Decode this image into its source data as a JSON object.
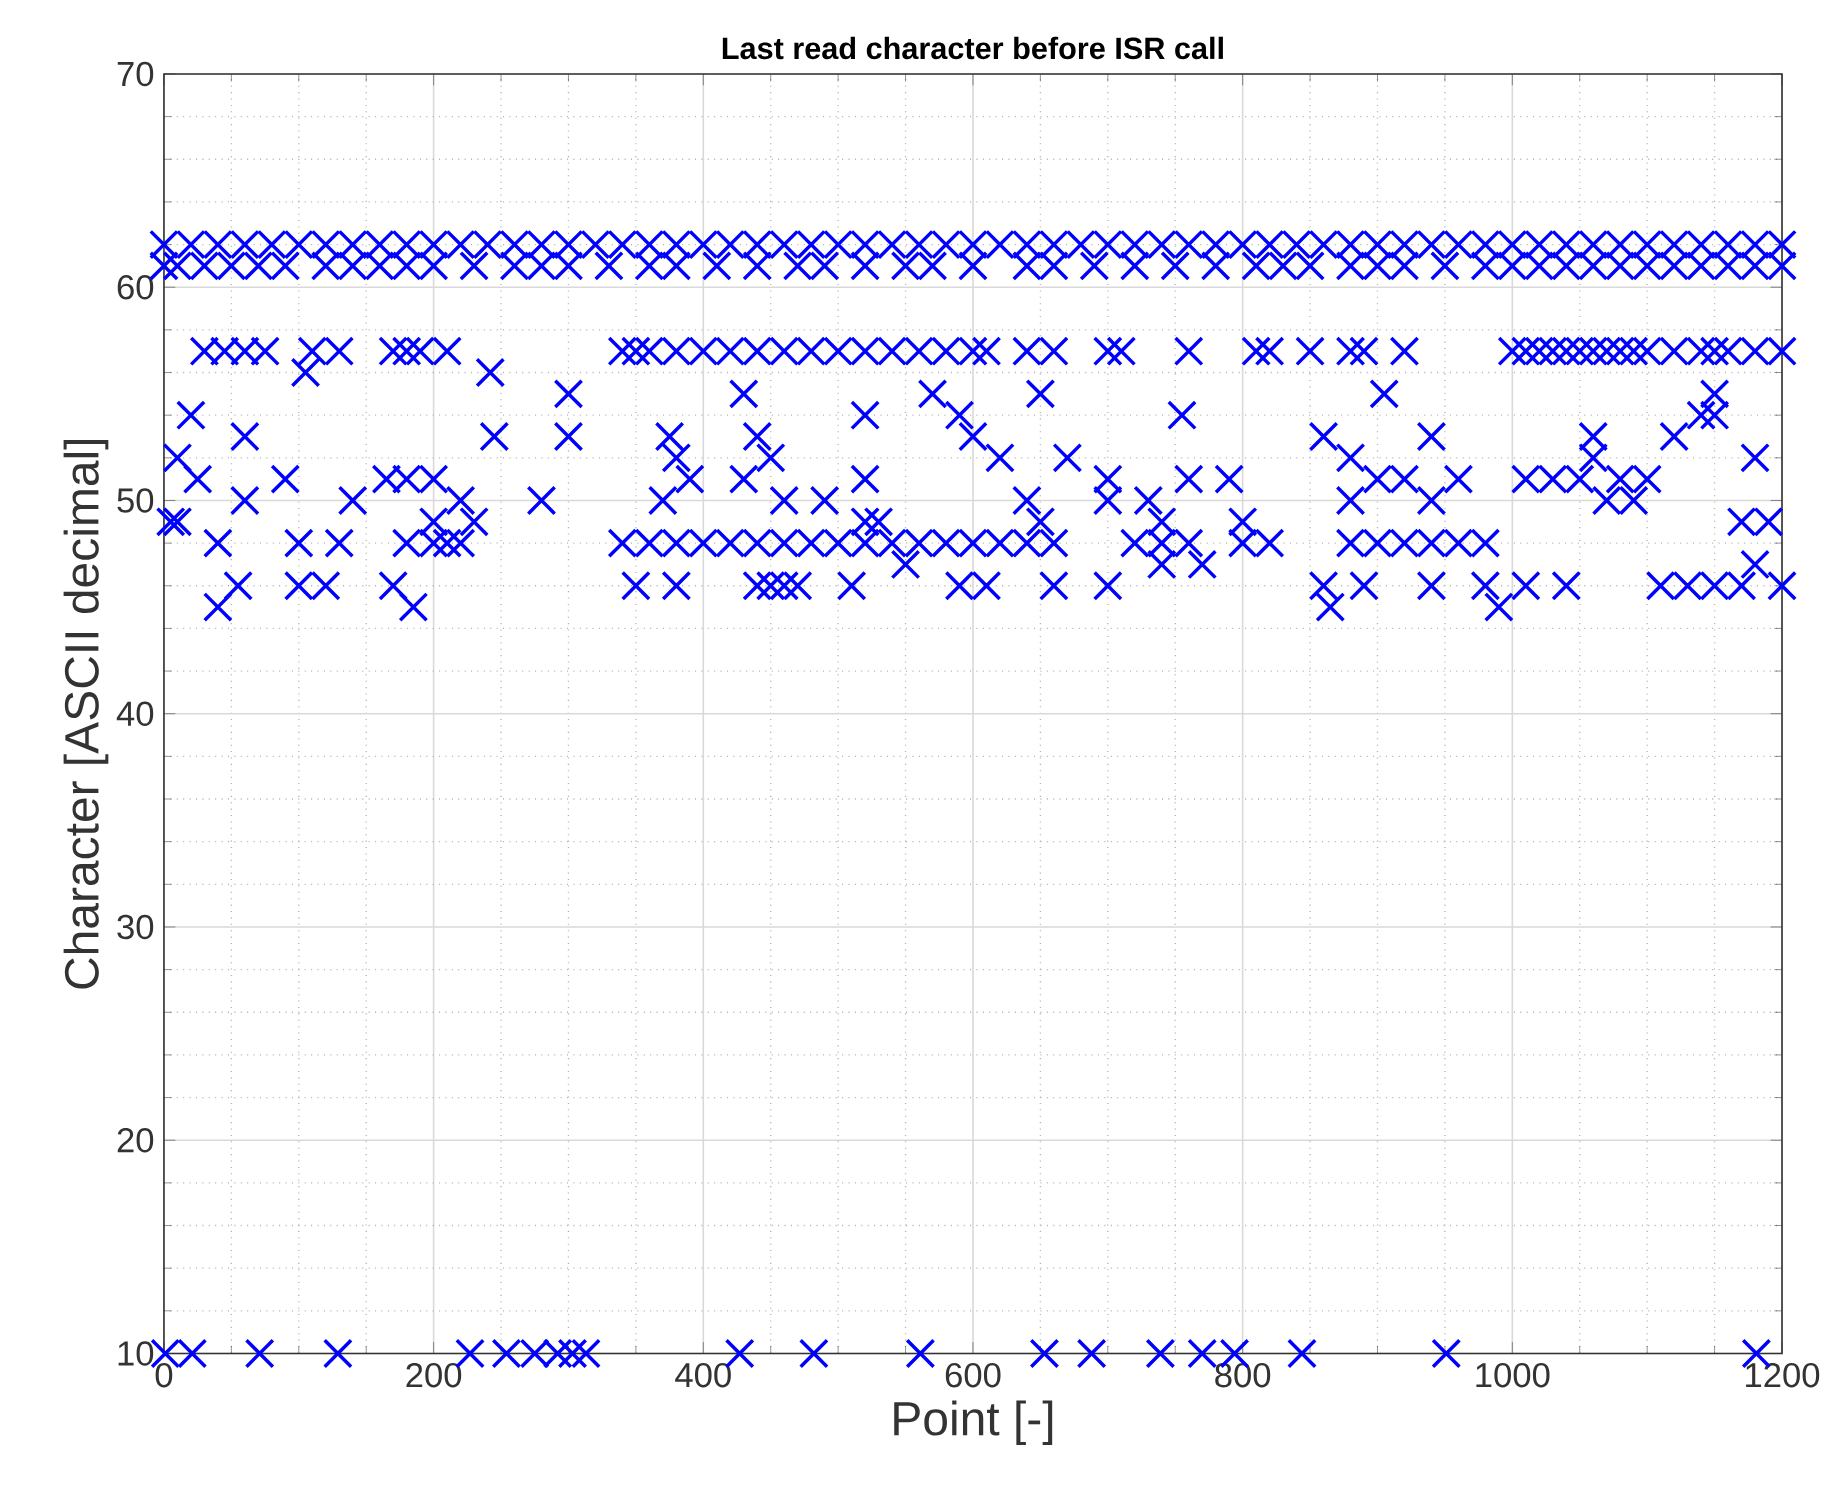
{
  "chart_data": {
    "type": "scatter",
    "title": "Last read character before ISR call",
    "xlabel": "Point [-]",
    "ylabel": "Character [ASCII decimal]",
    "xlim": [
      0,
      1200
    ],
    "xticks": [
      0,
      200,
      400,
      600,
      800,
      1000,
      1200
    ],
    "ylim": [
      10,
      70
    ],
    "yticks": [
      10,
      20,
      30,
      40,
      50,
      60,
      70
    ],
    "grid": true,
    "marker": "cross",
    "series": [
      {
        "color": "#0000ff",
        "x": [
          0,
          20,
          40,
          60,
          80,
          100,
          120,
          140,
          160,
          180,
          200,
          220,
          240,
          260,
          280,
          300,
          320,
          340,
          360,
          380,
          400,
          420,
          440,
          460,
          480,
          500,
          520,
          540,
          560,
          580,
          600,
          620,
          640,
          660,
          680,
          700,
          720,
          740,
          760,
          780,
          800,
          820,
          840,
          860,
          880,
          900,
          920,
          940,
          960,
          980,
          1000,
          1020,
          1040,
          1060,
          1080,
          1100,
          1120,
          1140,
          1160,
          1180,
          1200
        ],
        "values": [
          62,
          62,
          62,
          62,
          62,
          62,
          62,
          62,
          62,
          62,
          62,
          62,
          62,
          62,
          62,
          62,
          62,
          62,
          62,
          62,
          62,
          62,
          62,
          62,
          62,
          62,
          62,
          62,
          62,
          62,
          62,
          62,
          62,
          62,
          62,
          62,
          62,
          62,
          62,
          62,
          62,
          62,
          62,
          62,
          62,
          62,
          62,
          62,
          62,
          62,
          62,
          62,
          62,
          62,
          62,
          62,
          62,
          62,
          62,
          62,
          62
        ]
      },
      {
        "color": "#0000ff",
        "x": [
          0,
          10,
          30,
          50,
          70,
          90,
          120,
          140,
          160,
          180,
          200,
          230,
          260,
          280,
          300,
          330,
          360,
          380,
          410,
          440,
          470,
          490,
          520,
          550,
          570,
          600,
          640,
          660,
          690,
          720,
          750,
          780,
          810,
          830,
          850,
          880,
          900,
          920,
          950,
          980,
          1000,
          1020,
          1040,
          1060,
          1080,
          1100,
          1120,
          1140,
          1160,
          1180,
          1200
        ],
        "values": [
          61,
          61,
          61,
          61,
          61,
          61,
          61,
          61,
          61,
          61,
          61,
          61,
          61,
          61,
          61,
          61,
          61,
          61,
          61,
          61,
          61,
          61,
          61,
          61,
          61,
          61,
          61,
          61,
          61,
          61,
          61,
          61,
          61,
          61,
          61,
          61,
          61,
          61,
          61,
          61,
          61,
          61,
          61,
          61,
          61,
          61,
          61,
          61,
          61,
          61,
          61
        ]
      },
      {
        "color": "#0000ff",
        "x": [
          30,
          45,
          60,
          75,
          110,
          130,
          170,
          180,
          190,
          210,
          340,
          350,
          360,
          380,
          400,
          420,
          440,
          460,
          480,
          500,
          520,
          540,
          560,
          580,
          600,
          610,
          640,
          660,
          700,
          710,
          760,
          810,
          820,
          850,
          880,
          890,
          920,
          1000,
          1010,
          1020,
          1030,
          1040,
          1050,
          1060,
          1070,
          1080,
          1090,
          1100,
          1120,
          1140,
          1150,
          1160,
          1180,
          1200
        ],
        "values": [
          57,
          57,
          57,
          57,
          57,
          57,
          57,
          57,
          57,
          57,
          57,
          57,
          57,
          57,
          57,
          57,
          57,
          57,
          57,
          57,
          57,
          57,
          57,
          57,
          57,
          57,
          57,
          57,
          57,
          57,
          57,
          57,
          57,
          57,
          57,
          57,
          57,
          57,
          57,
          57,
          57,
          57,
          57,
          57,
          57,
          57,
          57,
          57,
          57,
          57,
          57,
          57,
          57,
          57
        ]
      },
      {
        "color": "#0000ff",
        "x": [
          105,
          242
        ],
        "values": [
          56,
          56
        ]
      },
      {
        "color": "#0000ff",
        "x": [
          300,
          430,
          570,
          650,
          905,
          1150
        ],
        "values": [
          55,
          55,
          55,
          55,
          55,
          55
        ]
      },
      {
        "color": "#0000ff",
        "x": [
          20,
          520,
          590,
          755,
          1140,
          1150
        ],
        "values": [
          54,
          54,
          54,
          54,
          54,
          54
        ]
      },
      {
        "color": "#0000ff",
        "x": [
          60,
          245,
          300,
          375,
          440,
          600,
          860,
          940,
          1060,
          1120
        ],
        "values": [
          53,
          53,
          53,
          53,
          53,
          53,
          53,
          53,
          53,
          53
        ]
      },
      {
        "color": "#0000ff",
        "x": [
          10,
          380,
          450,
          620,
          670,
          880,
          1060,
          1180
        ],
        "values": [
          52,
          52,
          52,
          52,
          52,
          52,
          52,
          52
        ]
      },
      {
        "color": "#0000ff",
        "x": [
          25,
          90,
          165,
          180,
          200,
          390,
          430,
          520,
          700,
          760,
          790,
          900,
          920,
          960,
          1010,
          1030,
          1050,
          1080,
          1100
        ],
        "values": [
          51,
          51,
          51,
          51,
          51,
          51,
          51,
          51,
          51,
          51,
          51,
          51,
          51,
          51,
          51,
          51,
          51,
          51,
          51
        ]
      },
      {
        "color": "#0000ff",
        "x": [
          60,
          140,
          220,
          280,
          370,
          460,
          490,
          640,
          700,
          730,
          880,
          940,
          1070,
          1090
        ],
        "values": [
          50,
          50,
          50,
          50,
          50,
          50,
          50,
          50,
          50,
          50,
          50,
          50,
          50,
          50
        ]
      },
      {
        "color": "#0000ff",
        "x": [
          5,
          10,
          200,
          230,
          520,
          530,
          650,
          740,
          800,
          1170,
          1190
        ],
        "values": [
          49,
          49,
          49,
          49,
          49,
          49,
          49,
          49,
          49,
          49,
          49
        ]
      },
      {
        "color": "#0000ff",
        "x": [
          40,
          100,
          130,
          180,
          200,
          210,
          220,
          340,
          360,
          380,
          400,
          420,
          440,
          460,
          480,
          500,
          520,
          540,
          560,
          580,
          600,
          620,
          640,
          660,
          720,
          740,
          760,
          800,
          820,
          880,
          900,
          920,
          940,
          960,
          980
        ],
        "values": [
          48,
          48,
          48,
          48,
          48,
          48,
          48,
          48,
          48,
          48,
          48,
          48,
          48,
          48,
          48,
          48,
          48,
          48,
          48,
          48,
          48,
          48,
          48,
          48,
          48,
          48,
          48,
          48,
          48,
          48,
          48,
          48,
          48,
          48,
          48
        ]
      },
      {
        "color": "#0000ff",
        "x": [
          550,
          740,
          770,
          1180
        ],
        "values": [
          47,
          47,
          47,
          47
        ]
      },
      {
        "color": "#0000ff",
        "x": [
          55,
          100,
          120,
          170,
          350,
          380,
          440,
          450,
          460,
          470,
          510,
          590,
          610,
          660,
          700,
          860,
          890,
          940,
          980,
          1010,
          1040,
          1110,
          1130,
          1150,
          1170,
          1200
        ],
        "values": [
          46,
          46,
          46,
          46,
          46,
          46,
          46,
          46,
          46,
          46,
          46,
          46,
          46,
          46,
          46,
          46,
          46,
          46,
          46,
          46,
          46,
          46,
          46,
          46,
          46,
          46
        ]
      },
      {
        "color": "#0000ff",
        "x": [
          40,
          185,
          865,
          990
        ],
        "values": [
          45,
          45,
          45,
          45
        ]
      },
      {
        "color": "#0000ff",
        "x": [
          1,
          21,
          71,
          129,
          227,
          254,
          275,
          292,
          303,
          313,
          427,
          482,
          561,
          653,
          688,
          739,
          770,
          794,
          844,
          951,
          1181
        ],
        "values": [
          10,
          10,
          10,
          10,
          10,
          10,
          10,
          10,
          10,
          10,
          10,
          10,
          10,
          10,
          10,
          10,
          10,
          10,
          10,
          10,
          10
        ]
      }
    ]
  }
}
